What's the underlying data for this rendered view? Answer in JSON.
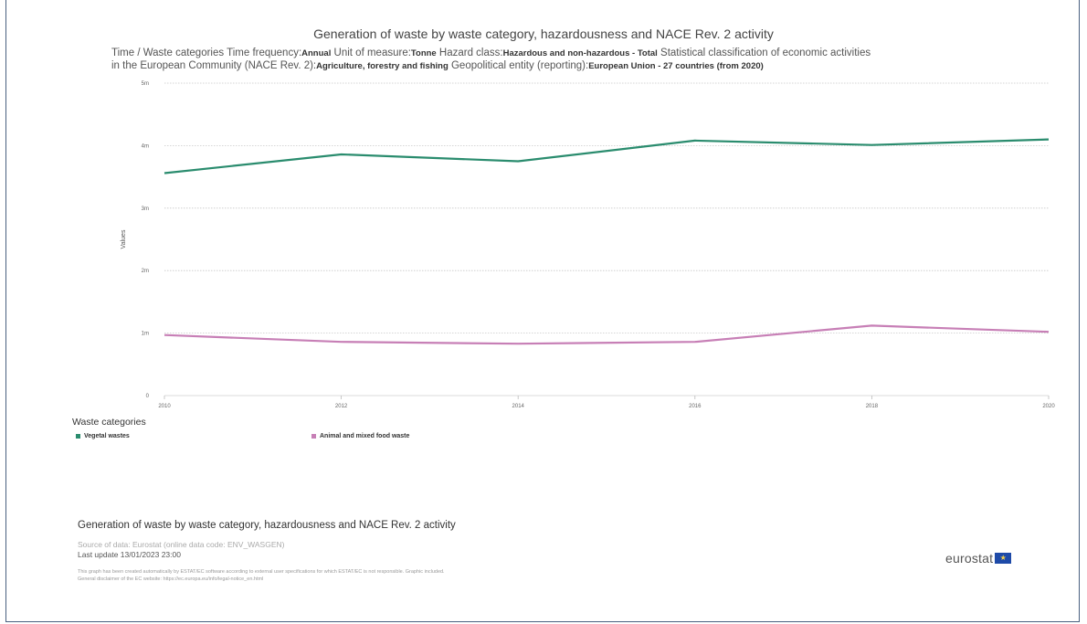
{
  "chart_data": {
    "type": "line",
    "title": "Generation of waste by waste category, hazardousness and NACE Rev. 2 activity",
    "subtitle_line1": {
      "prefix": "Time / Waste categories  Time frequency:",
      "time_frequency": "Annual",
      "unit_label": "  Unit of measure:",
      "unit": "Tonne",
      "hazard_label": "  Hazard class:",
      "hazard": "Hazardous and non-hazardous - Total",
      "nace_label": "  Statistical classification of economic activities"
    },
    "subtitle_line2": {
      "nace_label_cont": "in the European Community (NACE Rev. 2):",
      "nace": "Agriculture, forestry and fishing",
      "geo_label": "  Geopolitical entity (reporting):",
      "geo": "European Union - 27 countries (from 2020)"
    },
    "ylabel": "Values",
    "ylim": [
      0,
      5000000
    ],
    "yticks": [
      {
        "value": 0,
        "label": "0"
      },
      {
        "value": 1000000,
        "label": "1m"
      },
      {
        "value": 2000000,
        "label": "2m"
      },
      {
        "value": 3000000,
        "label": "3m"
      },
      {
        "value": 4000000,
        "label": "4m"
      },
      {
        "value": 5000000,
        "label": "5m"
      }
    ],
    "x": [
      2010,
      2012,
      2014,
      2016,
      2018,
      2020
    ],
    "xtick_labels": [
      "2010",
      "2012",
      "2014",
      "2016",
      "2018",
      "2020"
    ],
    "legend_title": "Waste categories",
    "legend_position": "bottom-left",
    "grid": true,
    "series": [
      {
        "name": "Vegetal wastes",
        "color": "#2a8c6e",
        "values": [
          3560000,
          3860000,
          3750000,
          4080000,
          4010000,
          4100000
        ]
      },
      {
        "name": "Animal and mixed food waste",
        "color": "#c77fb6",
        "values": [
          970000,
          860000,
          830000,
          860000,
          1120000,
          1020000
        ]
      }
    ]
  },
  "footer": {
    "title": "Generation of waste by waste category, hazardousness and NACE Rev. 2 activity",
    "source": "Source of data: Eurostat (online data code: ENV_WASGEN)",
    "last_update": "Last update 13/01/2023 23:00",
    "disclaimer1": "This graph has been created automatically by ESTAT/EC software according to external user specifications for which ESTAT/EC is not responsible. Graphic included.",
    "disclaimer2": "General disclaimer of the EC website: https://ec.europa.eu/info/legal-notice_en.html",
    "logo_text": "eurostat",
    "logo_flag": "★"
  }
}
